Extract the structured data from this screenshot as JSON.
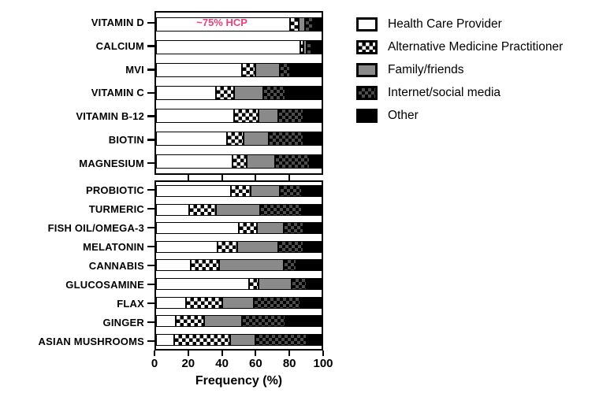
{
  "chart_data": {
    "type": "bar",
    "variant": "horizontal-stacked",
    "xlabel": "Frequency (%)",
    "xlim": [
      0,
      100
    ],
    "xticks": [
      0,
      20,
      40,
      60,
      80,
      100
    ],
    "grid": false,
    "legend_position": "right",
    "series_names": [
      "Health Care Provider",
      "Alternative Medicine Practitioner",
      "Family/friends",
      "Internet/social media",
      "Other"
    ],
    "groups": [
      {
        "name": "vitamins-and-minerals",
        "rows": [
          {
            "category": "VITAMIN D",
            "values": [
              81,
              5,
              4,
              5,
              5
            ]
          },
          {
            "category": "CALCIUM",
            "values": [
              87,
              2,
              2,
              3,
              6
            ]
          },
          {
            "category": "MVI",
            "values": [
              52,
              8,
              15,
              6,
              19
            ]
          },
          {
            "category": "VITAMIN C",
            "values": [
              36,
              11,
              18,
              13,
              22
            ]
          },
          {
            "category": "VITAMIN B-12",
            "values": [
              47,
              15,
              12,
              15,
              11
            ]
          },
          {
            "category": "BIOTIN",
            "values": [
              43,
              10,
              15,
              21,
              11
            ]
          },
          {
            "category": "MAGNESIUM",
            "values": [
              46,
              9,
              17,
              21,
              7
            ]
          }
        ]
      },
      {
        "name": "other-supplements",
        "rows": [
          {
            "category": "PROBIOTIC",
            "values": [
              45,
              12,
              18,
              13,
              12
            ]
          },
          {
            "category": "TURMERIC",
            "values": [
              20,
              16,
              27,
              25,
              12
            ]
          },
          {
            "category": "FISH OIL/OMEGA-3",
            "values": [
              50,
              11,
              16,
              12,
              11
            ]
          },
          {
            "category": "MELATONIN",
            "values": [
              37,
              12,
              25,
              15,
              11
            ]
          },
          {
            "category": "CANNABIS",
            "values": [
              21,
              17,
              39,
              8,
              15
            ]
          },
          {
            "category": "GLUCOSAMINE",
            "values": [
              56,
              6,
              20,
              9,
              9
            ]
          },
          {
            "category": "FLAX",
            "values": [
              18,
              22,
              19,
              28,
              13
            ]
          },
          {
            "category": "GINGER",
            "values": [
              12,
              17,
              23,
              26,
              22
            ]
          },
          {
            "category": "ASIAN MUSHROOMS",
            "values": [
              11,
              34,
              15,
              31,
              9
            ]
          }
        ]
      }
    ],
    "annotation": {
      "text": "~75% HCP",
      "target_category": "VITAMIN D",
      "color": "#ED3F79"
    },
    "legend": {
      "items": [
        {
          "label": "Health Care Provider",
          "pattern": "white"
        },
        {
          "label": "Alternative Medicine Practitioner",
          "pattern": "checker-black-white"
        },
        {
          "label": "Family/friends",
          "pattern": "gray"
        },
        {
          "label": "Internet/social media",
          "pattern": "checker-gray-on-black"
        },
        {
          "label": "Other",
          "pattern": "black"
        }
      ]
    },
    "colors": {
      "bar_outline": "#000000",
      "gray_fill": "#8a8a8a",
      "annotation_pink": "#ED3F79",
      "background": "#ffffff"
    }
  }
}
